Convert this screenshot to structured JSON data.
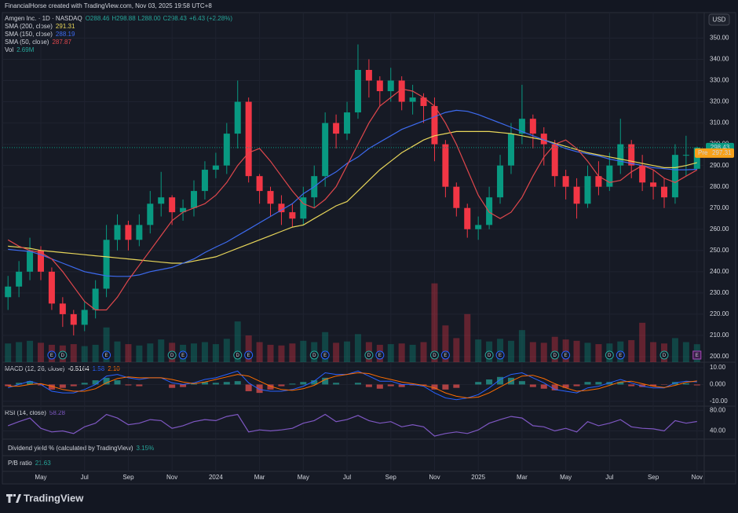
{
  "header": "FinancialHorse created with TradingView.com, Nov 03, 2025 19:58 UTC+8",
  "footer": "TradingView",
  "chart_data": {
    "type": "candlestick",
    "symbol": "Amgen Inc. · 1D · NASDAQ",
    "quote": {
      "open": "O288.46",
      "high": "H298.88",
      "low": "L288.00",
      "close": "C298.43",
      "change": "+6.43 (+2.28%)"
    },
    "currency": "USD",
    "categories": [
      null,
      null,
      null,
      "May",
      null,
      null,
      null,
      "Jul",
      null,
      null,
      null,
      "Sep",
      null,
      null,
      null,
      "Nov",
      null,
      null,
      null,
      "2024",
      null,
      null,
      null,
      "Mar",
      null,
      null,
      null,
      "May",
      null,
      null,
      null,
      "Jul",
      null,
      null,
      null,
      "Sep",
      null,
      null,
      null,
      "Nov",
      null,
      null,
      null,
      "2025",
      null,
      null,
      null,
      "Mar",
      null,
      null,
      null,
      "May",
      null,
      null,
      null,
      "Jul",
      null,
      null,
      null,
      "Sep",
      null,
      null,
      null,
      "Nov"
    ],
    "open": [
      228,
      233,
      240,
      250,
      240,
      225,
      220,
      215,
      222,
      232,
      255,
      262,
      255,
      262,
      272,
      275,
      268,
      270,
      278,
      288,
      290,
      305,
      320,
      285,
      278,
      272,
      268,
      265,
      275,
      285,
      310,
      305,
      315,
      335,
      330,
      325,
      330,
      320,
      322,
      318,
      300,
      280,
      270,
      260,
      262,
      275,
      290,
      305,
      312,
      305,
      300,
      285,
      280,
      272,
      285,
      280,
      290,
      300,
      290,
      282,
      280,
      275,
      295,
      288.46
    ],
    "high": [
      238,
      245,
      256,
      252,
      242,
      228,
      222,
      226,
      236,
      262,
      267,
      264,
      267,
      278,
      287,
      276,
      274,
      283,
      292,
      296,
      310,
      330,
      322,
      286,
      280,
      276,
      272,
      280,
      290,
      315,
      314,
      320,
      347,
      340,
      332,
      336,
      332,
      328,
      324,
      322,
      302,
      282,
      272,
      266,
      280,
      295,
      310,
      328,
      314,
      308,
      302,
      288,
      284,
      290,
      292,
      296,
      312,
      302,
      295,
      288,
      284,
      300,
      304,
      298.88
    ],
    "low": [
      222,
      228,
      236,
      236,
      222,
      214,
      210,
      212,
      218,
      228,
      250,
      250,
      252,
      258,
      266,
      262,
      264,
      266,
      274,
      284,
      286,
      298,
      282,
      272,
      266,
      262,
      261,
      262,
      270,
      280,
      298,
      302,
      312,
      322,
      318,
      320,
      316,
      314,
      310,
      292,
      275,
      266,
      256,
      255,
      260,
      272,
      286,
      300,
      298,
      290,
      280,
      274,
      265,
      270,
      276,
      278,
      286,
      284,
      278,
      274,
      270,
      272,
      285,
      288.0
    ],
    "close": [
      233,
      240,
      250,
      240,
      225,
      220,
      215,
      222,
      232,
      255,
      262,
      255,
      262,
      272,
      275,
      268,
      270,
      278,
      288,
      290,
      305,
      320,
      285,
      278,
      272,
      268,
      265,
      275,
      285,
      310,
      305,
      315,
      335,
      330,
      325,
      330,
      320,
      322,
      318,
      300,
      280,
      270,
      260,
      262,
      275,
      290,
      305,
      312,
      305,
      300,
      285,
      280,
      272,
      285,
      280,
      290,
      300,
      290,
      282,
      280,
      275,
      295,
      295,
      298.43
    ],
    "up_color": "#089981",
    "down_color": "#f23645",
    "ylim": [
      197.4,
      362
    ],
    "yticks": [
      {
        "value": 200,
        "label": "200.00"
      },
      {
        "value": 210,
        "label": "210.00"
      },
      {
        "value": 220,
        "label": "220.00"
      },
      {
        "value": 230,
        "label": "230.00"
      },
      {
        "value": 240,
        "label": "240.00"
      },
      {
        "value": 250,
        "label": "250.00"
      },
      {
        "value": 260,
        "label": "260.00"
      },
      {
        "value": 270,
        "label": "270.00"
      },
      {
        "value": 280,
        "label": "280.00"
      },
      {
        "value": 290,
        "label": "290.00"
      },
      {
        "value": 300,
        "label": "300.00"
      },
      {
        "value": 310,
        "label": "310.00"
      },
      {
        "value": 320,
        "label": "320.00"
      },
      {
        "value": 330,
        "label": "330.00"
      },
      {
        "value": 340,
        "label": "340.00"
      },
      {
        "value": 350,
        "label": "350.00"
      }
    ],
    "overlays": [
      {
        "name": "SMA (200, close)",
        "color": "#e8d65a",
        "values": [
          252,
          251.5,
          251,
          250,
          249.5,
          249,
          248.5,
          248,
          247.5,
          247,
          246.5,
          246,
          245.5,
          245,
          244.5,
          244,
          244,
          245,
          246,
          247,
          249,
          251,
          253,
          255,
          257,
          259,
          261,
          262,
          265,
          268,
          271,
          273,
          278,
          283,
          288,
          292,
          296,
          299,
          302,
          304,
          305,
          306,
          306,
          306,
          306,
          305.5,
          305,
          304,
          303,
          302,
          300.5,
          299,
          297.5,
          296,
          295,
          294,
          293,
          292,
          291,
          290,
          289,
          289,
          290,
          291.31
        ]
      },
      {
        "name": "SMA (150, close)",
        "color": "#3d6bf0",
        "values": [
          250.5,
          250,
          249.5,
          248,
          246,
          244,
          242,
          240,
          239,
          238,
          237.8,
          237.8,
          238.5,
          240,
          241,
          242,
          244,
          246,
          249,
          251.6,
          254,
          257,
          260,
          263,
          266,
          269,
          272,
          276.7,
          280,
          284,
          287,
          291,
          294,
          298,
          301,
          304,
          307,
          309,
          311,
          313,
          315,
          316,
          315.5,
          314,
          312,
          310,
          308,
          306,
          304,
          302,
          300,
          298,
          296.5,
          295.5,
          294.5,
          293,
          292,
          291,
          290,
          289,
          288.5,
          288,
          288,
          288.19
        ]
      },
      {
        "name": "SMA (50, close)",
        "color": "#e0474c",
        "values": [
          255,
          252,
          250,
          249,
          246,
          240,
          233,
          226,
          222,
          222,
          228,
          236,
          243,
          250,
          257,
          264,
          268,
          270,
          272,
          276,
          282,
          290,
          296,
          298,
          292,
          285,
          278,
          272,
          270,
          274,
          280,
          290,
          300,
          310,
          318,
          322,
          326,
          325,
          322,
          318,
          310,
          300,
          288,
          276,
          268,
          265,
          268,
          275,
          285,
          294,
          300,
          302,
          298,
          292,
          285,
          282,
          283,
          287,
          290,
          288,
          284,
          282,
          285,
          287.87
        ]
      }
    ],
    "volume": {
      "name": "Vol",
      "label": "2.69M",
      "values": [
        2.8,
        3.0,
        3.2,
        2.9,
        2.6,
        2.5,
        2.7,
        2.4,
        2.6,
        5.2,
        3.1,
        2.7,
        2.5,
        2.8,
        3.4,
        2.9,
        2.6,
        2.8,
        3.0,
        2.7,
        3.5,
        6.1,
        4.0,
        3.0,
        2.6,
        2.5,
        2.8,
        3.2,
        3.0,
        4.5,
        2.9,
        3.1,
        4.2,
        3.0,
        2.6,
        2.7,
        2.8,
        2.6,
        3.0,
        11.8,
        5.5,
        3.6,
        7.2,
        3.4,
        3.1,
        3.5,
        3.2,
        4.8,
        3.0,
        2.9,
        3.8,
        3.4,
        3.2,
        2.9,
        2.7,
        2.8,
        3.1,
        3.3,
        5.9,
        3.0,
        2.8,
        3.6,
        3.0,
        2.69
      ]
    },
    "premarket": {
      "label": "Pre",
      "value": 297.31
    },
    "events": [
      null,
      null,
      null,
      null,
      "E",
      "D",
      null,
      null,
      null,
      "E",
      null,
      null,
      null,
      null,
      null,
      "D",
      "E",
      null,
      null,
      null,
      null,
      "D",
      "E",
      null,
      null,
      null,
      null,
      null,
      "D",
      "E",
      null,
      null,
      null,
      "D",
      "E",
      null,
      null,
      null,
      null,
      "D",
      "E",
      null,
      null,
      null,
      "D",
      "E",
      null,
      null,
      null,
      null,
      "D",
      "E",
      null,
      null,
      null,
      "D",
      "E",
      null,
      null,
      null,
      "D",
      null,
      null,
      "E"
    ],
    "macd": {
      "title": "MACD (12, 26, close)",
      "legend": [
        "-0.5164",
        "1.58",
        "2.10"
      ],
      "histogram": [
        -1,
        1,
        2,
        -0.5,
        -3,
        -2,
        -1,
        1,
        2.5,
        4,
        2.5,
        -0.5,
        -1,
        0,
        0,
        -2,
        -1.5,
        0.5,
        1.5,
        1,
        1.5,
        2,
        -4,
        -5,
        -3,
        -1,
        0.5,
        1.5,
        2.5,
        4,
        1,
        0,
        1,
        -1.5,
        -2.5,
        -1,
        -1.5,
        -0.5,
        -0.5,
        -3,
        -3,
        -2,
        0,
        1.5,
        3,
        4.5,
        4,
        2,
        -1.5,
        -2.5,
        -3.5,
        -2,
        -1,
        1.5,
        1.5,
        1.5,
        1.5,
        -1,
        -1.5,
        -1,
        -0.2,
        1.5,
        0.7,
        -0.5164
      ],
      "macd": [
        -2,
        0,
        2,
        0,
        -4,
        -5,
        -5,
        -3,
        0,
        5,
        6,
        4,
        3,
        4,
        4,
        1,
        0,
        1,
        3,
        4,
        6,
        8,
        1,
        -3,
        -4,
        -4,
        -3,
        -1,
        2,
        7,
        6,
        6,
        8,
        5,
        2,
        2,
        0,
        0,
        -1,
        -5,
        -8,
        -9,
        -8,
        -6,
        -2,
        3,
        6,
        7,
        4,
        1,
        -3,
        -4,
        -5,
        -2,
        -1,
        1,
        3,
        1,
        -1,
        -2,
        -2,
        1,
        2,
        1.58
      ],
      "signal": [
        -1,
        -1,
        0,
        0.5,
        -1,
        -3,
        -4,
        -4,
        -2.5,
        1,
        3.5,
        4.5,
        4,
        4,
        4,
        3,
        1.5,
        0.5,
        1.5,
        3,
        4.5,
        6,
        5,
        2,
        -1,
        -3,
        -3.5,
        -2.5,
        -0.5,
        3,
        5,
        6,
        7,
        6.5,
        4.5,
        3,
        1.5,
        0.5,
        -0.5,
        -2,
        -5,
        -7,
        -8,
        -7.5,
        -5,
        -1.5,
        2,
        5,
        5.5,
        3.5,
        0.5,
        -2,
        -4,
        -3.5,
        -2.5,
        -0.5,
        1.5,
        2,
        0.5,
        -1,
        -1.8,
        -0.5,
        1.3,
        2.1
      ],
      "macd_color": "#2962ff",
      "signal_color": "#ff6d00",
      "ylim": [
        -12.9,
        13.3
      ],
      "yticks": [
        {
          "value": 10,
          "label": "10.00"
        },
        {
          "value": 0,
          "label": "0.000"
        },
        {
          "value": -10,
          "label": "-10.00"
        }
      ]
    },
    "rsi": {
      "title": "RSI (14, close)",
      "color": "#7e57c2",
      "values": [
        50,
        58,
        65,
        45,
        38,
        40,
        35,
        48,
        55,
        72,
        65,
        52,
        55,
        62,
        60,
        45,
        50,
        58,
        62,
        60,
        68,
        72,
        38,
        42,
        40,
        42,
        45,
        55,
        60,
        72,
        58,
        62,
        70,
        60,
        55,
        58,
        48,
        52,
        48,
        30,
        35,
        38,
        35,
        42,
        55,
        62,
        68,
        65,
        50,
        48,
        40,
        45,
        38,
        58,
        50,
        55,
        62,
        48,
        45,
        44,
        40,
        60,
        55,
        58.28
      ],
      "ylim": [
        24,
        88
      ],
      "yticks": [
        {
          "value": 80,
          "label": "80.00"
        },
        {
          "value": 40,
          "label": "40.00"
        }
      ]
    }
  },
  "panes": [
    {
      "title": "Dividend yield % (calculated by TradingView)",
      "value": "3.15%"
    },
    {
      "title": "P/B ratio",
      "value": "21.63"
    }
  ]
}
